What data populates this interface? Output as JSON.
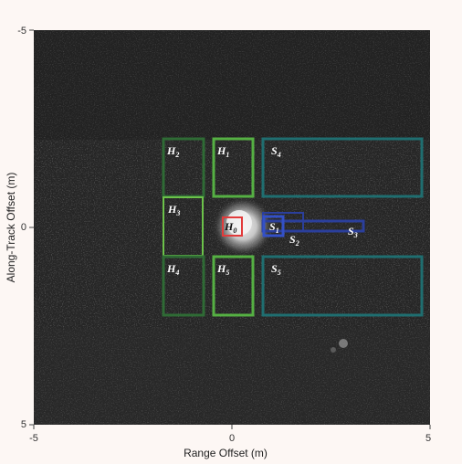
{
  "figure": {
    "xlabel": "Range Offset (m)",
    "ylabel": "Along-Track Offset (m)",
    "xticks": [
      "-5",
      "0",
      "5"
    ],
    "yticks": [
      "-5",
      "0",
      "5"
    ]
  },
  "colors": {
    "background": "#fdf7f4",
    "sonar_dark": "#262626",
    "target_glow": "#d8d8d8",
    "h0_border": "#e23b3b",
    "h_border_dark": "#2f6b35",
    "h_border_mid": "#3f9b3f",
    "h_border_light": "#6cc24a",
    "s_teal": "#1f6e70",
    "s_blue": "#2b3f9c"
  },
  "regions": [
    {
      "id": "H0",
      "base": "H",
      "sub": "0",
      "color": "#e23b3b"
    },
    {
      "id": "H1",
      "base": "H",
      "sub": "1",
      "color": "#55b043"
    },
    {
      "id": "H2",
      "base": "H",
      "sub": "2",
      "color": "#2f6b35"
    },
    {
      "id": "H3",
      "base": "H",
      "sub": "3",
      "color": "#6cc24a"
    },
    {
      "id": "H4",
      "base": "H",
      "sub": "4",
      "color": "#2f6b35"
    },
    {
      "id": "H5",
      "base": "H",
      "sub": "5",
      "color": "#55b043"
    },
    {
      "id": "S1",
      "base": "S",
      "sub": "1",
      "color": "#2b3f9c"
    },
    {
      "id": "S2",
      "base": "S",
      "sub": "2",
      "color": "#2b3f9c"
    },
    {
      "id": "S3",
      "base": "S",
      "sub": "3",
      "color": "#2b3f9c"
    },
    {
      "id": "S4",
      "base": "S",
      "sub": "4",
      "color": "#1f6e70"
    },
    {
      "id": "S5",
      "base": "S",
      "sub": "5",
      "color": "#1f6e70"
    }
  ]
}
